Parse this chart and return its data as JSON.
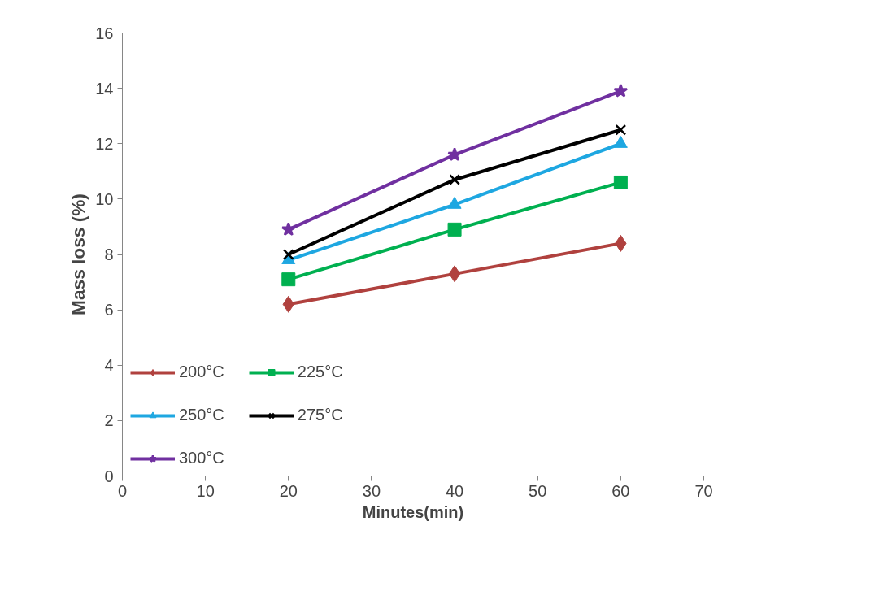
{
  "chart_data": {
    "type": "line",
    "xlabel": "Minutes(min)",
    "ylabel": "Mass loss (%)",
    "x": [
      20,
      40,
      60
    ],
    "xlim": [
      0,
      70
    ],
    "xticks": [
      0,
      10,
      20,
      30,
      40,
      50,
      60,
      70
    ],
    "ylim": [
      0,
      16
    ],
    "yticks": [
      0,
      2,
      4,
      6,
      8,
      10,
      12,
      14,
      16
    ],
    "grid": false,
    "legend": "bottom left",
    "series": [
      {
        "name": "200°C",
        "color": "#b0413e",
        "marker": "diamond",
        "values": [
          6.2,
          7.3,
          8.4
        ]
      },
      {
        "name": "225°C",
        "color": "#00b050",
        "marker": "square",
        "values": [
          7.1,
          8.9,
          10.6
        ]
      },
      {
        "name": "250°C",
        "color": "#1ea7e1",
        "marker": "triangle",
        "values": [
          7.8,
          9.8,
          12.0
        ]
      },
      {
        "name": "275°C",
        "color": "#000000",
        "marker": "cross",
        "values": [
          8.0,
          10.7,
          12.5
        ]
      },
      {
        "name": "300°C",
        "color": "#7030a0",
        "marker": "star",
        "values": [
          8.9,
          11.6,
          13.9
        ]
      }
    ]
  }
}
